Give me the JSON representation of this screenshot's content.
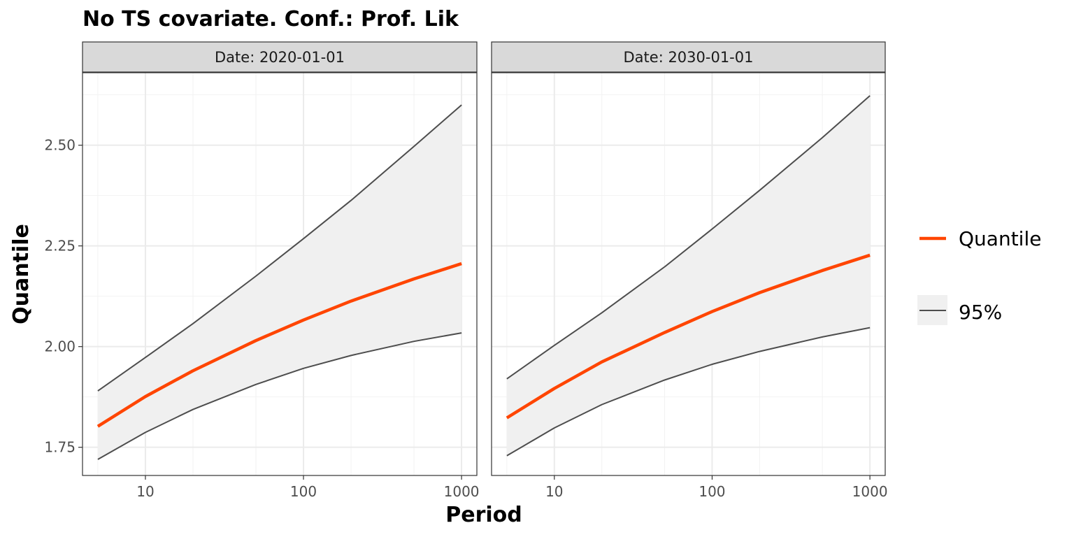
{
  "chart_data": {
    "type": "line",
    "title": "No TS covariate. Conf.: Prof. Lik",
    "xlabel": "Period",
    "ylabel": "Quantile",
    "x_scale": "log10",
    "xlim": [
      4.0,
      1250
    ],
    "ylim": [
      1.68,
      2.68
    ],
    "x_ticks": [
      10,
      100,
      1000
    ],
    "x_tick_labels": [
      "10",
      "100",
      "1000"
    ],
    "y_ticks": [
      1.75,
      2.0,
      2.25,
      2.5
    ],
    "y_tick_labels": [
      "1.75",
      "2.00",
      "2.25",
      "2.50"
    ],
    "grid": true,
    "legend": {
      "position": "right",
      "entries": [
        {
          "label": "Quantile",
          "color": "#ff4500"
        },
        {
          "label": "95%",
          "color": "#4d4d4d",
          "fill": "#f0f0f0"
        }
      ]
    },
    "x": [
      5,
      10,
      20,
      50,
      100,
      200,
      500,
      1000
    ],
    "panels": [
      {
        "strip": "Date: 2020-01-01",
        "series": [
          {
            "name": "Quantile",
            "values": [
              1.802,
              1.876,
              1.94,
              2.015,
              2.066,
              2.113,
              2.168,
              2.206
            ]
          },
          {
            "name": "95%",
            "role": "upper",
            "values": [
              1.89,
              1.973,
              2.057,
              2.175,
              2.268,
              2.363,
              2.497,
              2.6
            ]
          },
          {
            "name": "95%",
            "role": "lower",
            "values": [
              1.72,
              1.787,
              1.844,
              1.906,
              1.946,
              1.978,
              2.013,
              2.034
            ]
          }
        ]
      },
      {
        "strip": "Date: 2030-01-01",
        "series": [
          {
            "name": "Quantile",
            "values": [
              1.823,
              1.896,
              1.962,
              2.035,
              2.087,
              2.134,
              2.189,
              2.227
            ]
          },
          {
            "name": "95%",
            "role": "upper",
            "values": [
              1.92,
              2.003,
              2.084,
              2.198,
              2.292,
              2.388,
              2.519,
              2.623
            ]
          },
          {
            "name": "95%",
            "role": "lower",
            "values": [
              1.729,
              1.798,
              1.856,
              1.917,
              1.956,
              1.988,
              2.024,
              2.047
            ]
          }
        ]
      }
    ]
  }
}
